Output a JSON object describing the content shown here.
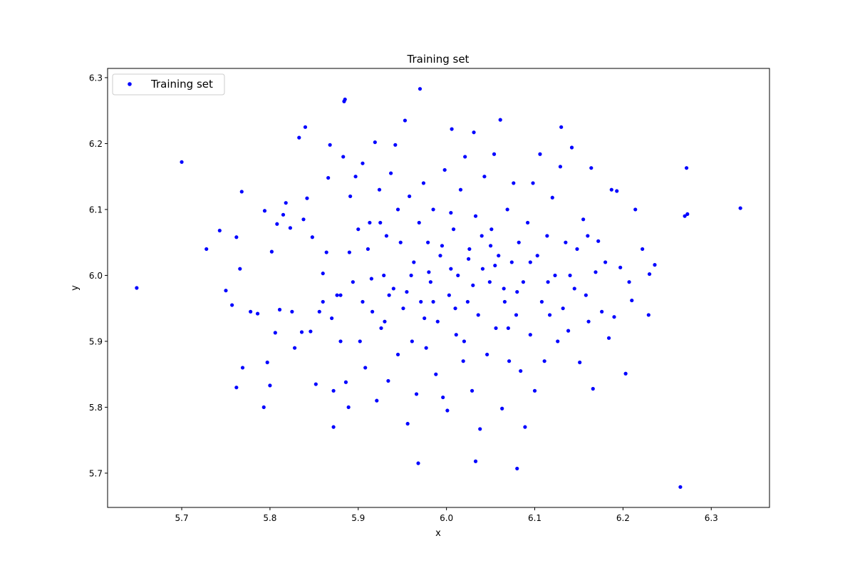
{
  "chart_data": {
    "type": "scatter",
    "title": "Training set",
    "xlabel": "x",
    "ylabel": "y",
    "xlim": [
      5.616,
      6.366
    ],
    "ylim": [
      5.648,
      6.314
    ],
    "xticks": [
      5.7,
      5.8,
      5.9,
      6.0,
      6.1,
      6.2,
      6.3
    ],
    "xtick_labels": [
      "5.7",
      "5.8",
      "5.9",
      "6.0",
      "6.1",
      "6.2",
      "6.3"
    ],
    "yticks": [
      5.7,
      5.8,
      5.9,
      6.0,
      6.1,
      6.2,
      6.3
    ],
    "ytick_labels": [
      "5.7",
      "5.8",
      "5.9",
      "6.0",
      "6.1",
      "6.2",
      "6.3"
    ],
    "grid": false,
    "legend": {
      "position": "top-left",
      "entries": [
        "Training set"
      ]
    },
    "series": [
      {
        "name": "Training set",
        "color": "#0000ff",
        "marker": "circle",
        "points": [
          [
            5.649,
            5.981
          ],
          [
            5.7,
            6.172
          ],
          [
            6.333,
            6.102
          ],
          [
            6.265,
            5.679
          ],
          [
            6.272,
            6.163
          ],
          [
            6.27,
            6.09
          ],
          [
            6.273,
            6.093
          ],
          [
            5.97,
            6.283
          ],
          [
            5.885,
            6.267
          ],
          [
            5.884,
            6.264
          ],
          [
            6.08,
            5.707
          ],
          [
            5.968,
            5.715
          ],
          [
            6.033,
            5.718
          ],
          [
            5.84,
            6.225
          ],
          [
            6.13,
            6.225
          ],
          [
            5.762,
            5.83
          ],
          [
            5.793,
            5.8
          ],
          [
            5.872,
            5.77
          ],
          [
            5.743,
            6.068
          ],
          [
            5.728,
            6.04
          ],
          [
            5.75,
            5.977
          ],
          [
            5.757,
            5.955
          ],
          [
            5.768,
            6.127
          ],
          [
            5.769,
            5.86
          ],
          [
            5.762,
            6.058
          ],
          [
            5.766,
            6.01
          ],
          [
            5.778,
            5.945
          ],
          [
            5.786,
            5.942
          ],
          [
            5.794,
            6.098
          ],
          [
            5.797,
            5.868
          ],
          [
            5.8,
            5.833
          ],
          [
            5.802,
            6.036
          ],
          [
            5.806,
            5.913
          ],
          [
            5.808,
            6.078
          ],
          [
            5.811,
            5.948
          ],
          [
            5.815,
            6.092
          ],
          [
            5.818,
            6.11
          ],
          [
            5.823,
            6.072
          ],
          [
            5.825,
            5.945
          ],
          [
            5.828,
            5.89
          ],
          [
            5.833,
            6.209
          ],
          [
            5.836,
            5.914
          ],
          [
            5.838,
            6.085
          ],
          [
            5.842,
            6.117
          ],
          [
            5.846,
            5.915
          ],
          [
            5.848,
            6.058
          ],
          [
            5.852,
            5.835
          ],
          [
            5.856,
            5.945
          ],
          [
            5.86,
            6.003
          ],
          [
            5.864,
            6.035
          ],
          [
            5.866,
            6.148
          ],
          [
            5.868,
            6.198
          ],
          [
            5.87,
            5.935
          ],
          [
            5.872,
            5.825
          ],
          [
            5.876,
            5.97
          ],
          [
            5.88,
            5.9
          ],
          [
            5.883,
            6.18
          ],
          [
            5.886,
            5.838
          ],
          [
            5.889,
            5.8
          ],
          [
            5.891,
            6.12
          ],
          [
            5.894,
            5.99
          ],
          [
            5.897,
            6.15
          ],
          [
            5.9,
            6.07
          ],
          [
            5.902,
            5.9
          ],
          [
            5.905,
            6.17
          ],
          [
            5.908,
            5.86
          ],
          [
            5.911,
            6.04
          ],
          [
            5.913,
            6.08
          ],
          [
            5.916,
            5.945
          ],
          [
            5.919,
            6.202
          ],
          [
            5.921,
            5.81
          ],
          [
            5.924,
            6.13
          ],
          [
            5.926,
            5.92
          ],
          [
            5.929,
            6.0
          ],
          [
            5.932,
            6.06
          ],
          [
            5.934,
            5.84
          ],
          [
            5.937,
            6.155
          ],
          [
            5.94,
            5.98
          ],
          [
            5.942,
            6.198
          ],
          [
            5.945,
            5.88
          ],
          [
            5.948,
            6.05
          ],
          [
            5.951,
            5.95
          ],
          [
            5.953,
            6.235
          ],
          [
            5.956,
            5.775
          ],
          [
            5.958,
            6.12
          ],
          [
            5.961,
            5.9
          ],
          [
            5.963,
            6.02
          ],
          [
            5.966,
            5.82
          ],
          [
            5.969,
            6.08
          ],
          [
            5.971,
            5.96
          ],
          [
            5.974,
            6.14
          ],
          [
            5.977,
            5.89
          ],
          [
            5.979,
            6.05
          ],
          [
            5.982,
            5.99
          ],
          [
            5.985,
            6.1
          ],
          [
            5.988,
            5.85
          ],
          [
            5.99,
            5.93
          ],
          [
            5.993,
            6.03
          ],
          [
            5.996,
            5.815
          ],
          [
            5.998,
            6.16
          ],
          [
            6.001,
            5.795
          ],
          [
            6.003,
            5.97
          ],
          [
            6.006,
            6.222
          ],
          [
            6.008,
            6.07
          ],
          [
            6.011,
            5.91
          ],
          [
            6.013,
            6.0
          ],
          [
            6.016,
            6.13
          ],
          [
            6.019,
            5.87
          ],
          [
            6.021,
            6.18
          ],
          [
            6.024,
            5.96
          ],
          [
            6.026,
            6.04
          ],
          [
            6.029,
            5.825
          ],
          [
            6.031,
            6.217
          ],
          [
            6.033,
            6.09
          ],
          [
            6.036,
            5.94
          ],
          [
            6.038,
            5.767
          ],
          [
            6.041,
            6.01
          ],
          [
            6.043,
            6.15
          ],
          [
            6.046,
            5.88
          ],
          [
            6.049,
            5.99
          ],
          [
            6.051,
            6.07
          ],
          [
            6.054,
            6.184
          ],
          [
            6.056,
            5.92
          ],
          [
            6.059,
            6.03
          ],
          [
            6.061,
            6.236
          ],
          [
            6.063,
            5.798
          ],
          [
            6.066,
            5.96
          ],
          [
            6.069,
            6.1
          ],
          [
            6.071,
            5.87
          ],
          [
            6.074,
            6.02
          ],
          [
            6.076,
            6.14
          ],
          [
            6.079,
            5.94
          ],
          [
            6.082,
            6.05
          ],
          [
            6.084,
            5.855
          ],
          [
            6.087,
            5.99
          ],
          [
            6.089,
            5.77
          ],
          [
            6.092,
            6.08
          ],
          [
            6.095,
            5.91
          ],
          [
            6.098,
            6.14
          ],
          [
            6.1,
            5.825
          ],
          [
            6.103,
            6.03
          ],
          [
            6.106,
            6.184
          ],
          [
            6.108,
            5.96
          ],
          [
            6.111,
            5.87
          ],
          [
            6.114,
            6.06
          ],
          [
            6.117,
            5.94
          ],
          [
            6.12,
            6.118
          ],
          [
            6.123,
            6.0
          ],
          [
            6.126,
            5.9
          ],
          [
            6.129,
            6.165
          ],
          [
            6.132,
            5.95
          ],
          [
            6.135,
            6.05
          ],
          [
            6.138,
            5.916
          ],
          [
            6.142,
            6.194
          ],
          [
            6.145,
            5.98
          ],
          [
            6.148,
            6.04
          ],
          [
            6.151,
            5.868
          ],
          [
            6.155,
            6.085
          ],
          [
            6.158,
            5.97
          ],
          [
            6.161,
            5.93
          ],
          [
            6.164,
            6.163
          ],
          [
            6.166,
            5.828
          ],
          [
            6.169,
            6.005
          ],
          [
            6.172,
            6.052
          ],
          [
            6.176,
            5.945
          ],
          [
            6.18,
            6.02
          ],
          [
            6.184,
            5.905
          ],
          [
            6.187,
            6.13
          ],
          [
            6.19,
            5.937
          ],
          [
            6.193,
            6.128
          ],
          [
            6.197,
            6.012
          ],
          [
            6.203,
            5.851
          ],
          [
            6.207,
            5.99
          ],
          [
            6.21,
            5.962
          ],
          [
            6.214,
            6.1
          ],
          [
            6.222,
            6.04
          ],
          [
            6.229,
            5.94
          ],
          [
            6.23,
            6.002
          ],
          [
            6.236,
            6.016
          ],
          [
            5.88,
            5.97
          ],
          [
            5.905,
            5.96
          ],
          [
            5.93,
            5.93
          ],
          [
            5.955,
            5.975
          ],
          [
            5.98,
            6.005
          ],
          [
            6.005,
            6.01
          ],
          [
            6.03,
            5.985
          ],
          [
            6.055,
            6.015
          ],
          [
            6.08,
            5.975
          ],
          [
            6.01,
            5.95
          ],
          [
            5.995,
            6.045
          ],
          [
            6.04,
            6.06
          ],
          [
            5.96,
            6.0
          ],
          [
            6.02,
            5.9
          ],
          [
            5.945,
            6.1
          ],
          [
            6.065,
            5.98
          ],
          [
            5.915,
            5.995
          ],
          [
            6.095,
            6.02
          ],
          [
            5.975,
            5.935
          ],
          [
            6.05,
            6.045
          ],
          [
            5.89,
            6.035
          ],
          [
            6.115,
            5.99
          ],
          [
            5.935,
            5.97
          ],
          [
            6.005,
            6.095
          ],
          [
            6.025,
            6.025
          ],
          [
            5.985,
            5.96
          ],
          [
            5.925,
            6.08
          ],
          [
            6.07,
            5.92
          ],
          [
            6.14,
            6.0
          ],
          [
            5.86,
            5.96
          ],
          [
            6.16,
            6.06
          ]
        ]
      }
    ]
  }
}
